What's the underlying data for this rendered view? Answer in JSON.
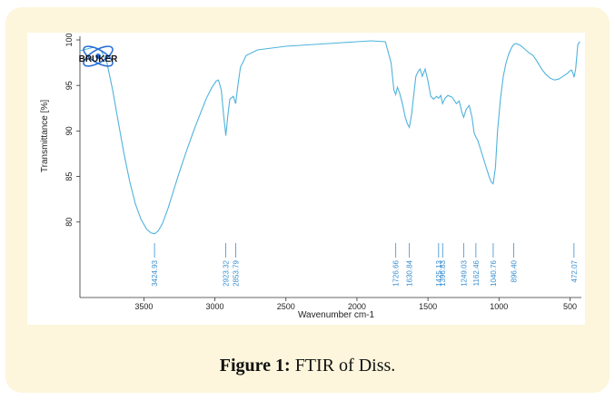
{
  "logo": {
    "text": "BRUKER"
  },
  "caption": {
    "label": "Figure 1:",
    "text": " FTIR of Diss."
  },
  "colors": {
    "line": "#4fb3dc",
    "annot": "#3a8fd0",
    "card": "#fdf6dc",
    "axis": "#333333"
  },
  "chart_data": {
    "type": "line",
    "title": "",
    "xlabel": "Wavenumber cm-1",
    "ylabel": "Transmittance [%]",
    "xlim": [
      3950,
      420
    ],
    "ylim": [
      74.5,
      100
    ],
    "x_ticks": [
      3500,
      3000,
      2500,
      2000,
      1500,
      1000,
      500
    ],
    "y_ticks": [
      80,
      85,
      90,
      95,
      100
    ],
    "grid": false,
    "series": [
      {
        "name": "",
        "points": [
          [
            3950,
            98.8
          ],
          [
            3850,
            99.2
          ],
          [
            3800,
            98.8
          ],
          [
            3760,
            97.5
          ],
          [
            3720,
            94.5
          ],
          [
            3680,
            91.0
          ],
          [
            3640,
            87.5
          ],
          [
            3600,
            84.5
          ],
          [
            3560,
            82.0
          ],
          [
            3520,
            80.3
          ],
          [
            3480,
            79.2
          ],
          [
            3450,
            78.8
          ],
          [
            3425,
            78.7
          ],
          [
            3400,
            79.0
          ],
          [
            3370,
            79.8
          ],
          [
            3330,
            81.5
          ],
          [
            3290,
            83.5
          ],
          [
            3250,
            85.5
          ],
          [
            3200,
            87.8
          ],
          [
            3150,
            90.0
          ],
          [
            3100,
            92.0
          ],
          [
            3060,
            93.6
          ],
          [
            3020,
            94.8
          ],
          [
            2990,
            95.5
          ],
          [
            2975,
            95.6
          ],
          [
            2955,
            94.5
          ],
          [
            2940,
            92.0
          ],
          [
            2923,
            89.5
          ],
          [
            2910,
            91.5
          ],
          [
            2895,
            93.5
          ],
          [
            2870,
            93.8
          ],
          [
            2854,
            93.0
          ],
          [
            2840,
            94.8
          ],
          [
            2820,
            97.0
          ],
          [
            2780,
            98.3
          ],
          [
            2700,
            98.9
          ],
          [
            2600,
            99.1
          ],
          [
            2500,
            99.3
          ],
          [
            2400,
            99.4
          ],
          [
            2300,
            99.5
          ],
          [
            2200,
            99.6
          ],
          [
            2100,
            99.7
          ],
          [
            2000,
            99.8
          ],
          [
            1900,
            99.9
          ],
          [
            1800,
            99.8
          ],
          [
            1760,
            97.5
          ],
          [
            1740,
            94.5
          ],
          [
            1727,
            94.0
          ],
          [
            1715,
            94.8
          ],
          [
            1700,
            94.2
          ],
          [
            1680,
            93.0
          ],
          [
            1660,
            91.5
          ],
          [
            1645,
            90.8
          ],
          [
            1631,
            90.4
          ],
          [
            1615,
            91.8
          ],
          [
            1600,
            94.0
          ],
          [
            1585,
            96.0
          ],
          [
            1570,
            96.5
          ],
          [
            1555,
            96.8
          ],
          [
            1540,
            96.0
          ],
          [
            1520,
            96.8
          ],
          [
            1500,
            95.5
          ],
          [
            1480,
            93.8
          ],
          [
            1460,
            93.5
          ],
          [
            1440,
            93.8
          ],
          [
            1425,
            93.6
          ],
          [
            1410,
            93.9
          ],
          [
            1397,
            93.0
          ],
          [
            1380,
            93.6
          ],
          [
            1360,
            93.9
          ],
          [
            1330,
            93.7
          ],
          [
            1300,
            93.0
          ],
          [
            1280,
            93.3
          ],
          [
            1260,
            92.0
          ],
          [
            1249,
            91.5
          ],
          [
            1230,
            92.4
          ],
          [
            1210,
            92.8
          ],
          [
            1190,
            91.5
          ],
          [
            1175,
            89.8
          ],
          [
            1162,
            89.3
          ],
          [
            1150,
            89.0
          ],
          [
            1130,
            88.0
          ],
          [
            1110,
            87.0
          ],
          [
            1090,
            86.0
          ],
          [
            1070,
            85.0
          ],
          [
            1055,
            84.4
          ],
          [
            1041,
            84.2
          ],
          [
            1025,
            86.0
          ],
          [
            1010,
            90.0
          ],
          [
            990,
            93.5
          ],
          [
            970,
            96.0
          ],
          [
            950,
            97.5
          ],
          [
            930,
            98.5
          ],
          [
            910,
            99.2
          ],
          [
            896,
            99.5
          ],
          [
            880,
            99.6
          ],
          [
            850,
            99.4
          ],
          [
            820,
            99.0
          ],
          [
            790,
            98.6
          ],
          [
            760,
            98.3
          ],
          [
            730,
            97.6
          ],
          [
            700,
            96.8
          ],
          [
            670,
            96.2
          ],
          [
            640,
            95.8
          ],
          [
            610,
            95.6
          ],
          [
            580,
            95.7
          ],
          [
            550,
            96.0
          ],
          [
            520,
            96.3
          ],
          [
            500,
            96.6
          ],
          [
            490,
            96.7
          ],
          [
            480,
            96.4
          ],
          [
            472,
            95.9
          ],
          [
            460,
            96.8
          ],
          [
            445,
            99.5
          ],
          [
            430,
            99.8
          ]
        ]
      }
    ],
    "annotations": [
      {
        "x": 3424.93,
        "label": "3424.93"
      },
      {
        "x": 2923.32,
        "label": "2923.32"
      },
      {
        "x": 2853.79,
        "label": "2853.79"
      },
      {
        "x": 1726.66,
        "label": "1726.66"
      },
      {
        "x": 1630.84,
        "label": "1630.84"
      },
      {
        "x": 1425.13,
        "label": "1425.13"
      },
      {
        "x": 1396.83,
        "label": "1396.83"
      },
      {
        "x": 1249.03,
        "label": "1249.03"
      },
      {
        "x": 1162.46,
        "label": "1162.46"
      },
      {
        "x": 1040.76,
        "label": "1040.76"
      },
      {
        "x": 896.4,
        "label": "896.40"
      },
      {
        "x": 472.07,
        "label": "472.07"
      }
    ]
  }
}
